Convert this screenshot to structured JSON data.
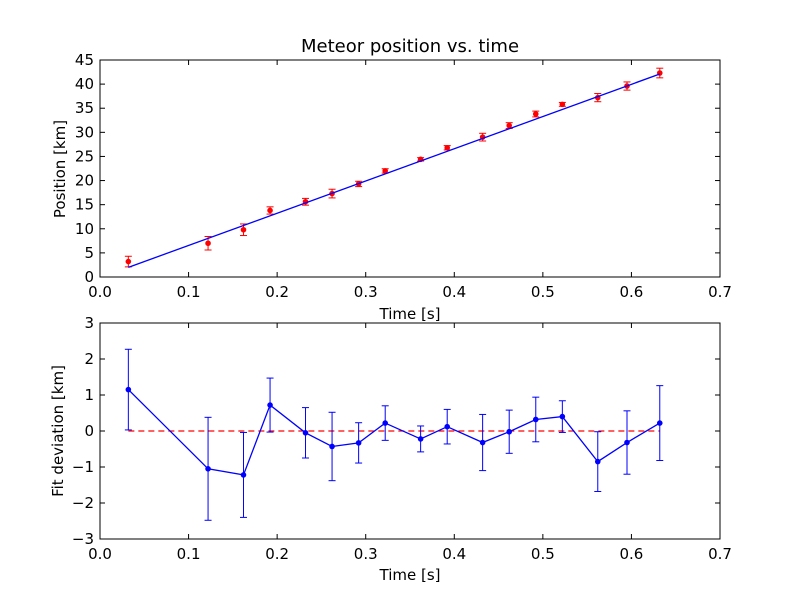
{
  "chart_data": [
    {
      "type": "scatter",
      "title": "Meteor position vs. time",
      "xlabel": "Time [s]",
      "ylabel": "Position [km]",
      "xlim": [
        0.0,
        0.7
      ],
      "ylim": [
        0,
        45
      ],
      "xticks": [
        "0.0",
        "0.1",
        "0.2",
        "0.3",
        "0.4",
        "0.5",
        "0.6",
        "0.7"
      ],
      "yticks": [
        "0",
        "5",
        "10",
        "15",
        "20",
        "25",
        "30",
        "35",
        "40",
        "45"
      ],
      "grid": false,
      "series": [
        {
          "kind": "errorbar-points",
          "color": "#ff0000",
          "x": [
            0.032,
            0.122,
            0.162,
            0.192,
            0.232,
            0.262,
            0.292,
            0.322,
            0.362,
            0.392,
            0.432,
            0.462,
            0.492,
            0.522,
            0.562,
            0.595,
            0.632
          ],
          "y": [
            3.2,
            7.0,
            9.8,
            13.8,
            15.6,
            17.3,
            19.3,
            22.0,
            24.4,
            26.8,
            29.0,
            31.4,
            33.8,
            35.8,
            37.2,
            39.6,
            42.3
          ],
          "yerr": [
            1.1,
            1.4,
            1.2,
            0.75,
            0.7,
            0.9,
            0.55,
            0.45,
            0.35,
            0.45,
            0.8,
            0.6,
            0.6,
            0.4,
            0.85,
            0.85,
            1.0
          ]
        },
        {
          "kind": "fit-line",
          "color": "#0000ff",
          "x": [
            0.032,
            0.632
          ],
          "y": [
            2.0,
            42.1
          ]
        }
      ]
    },
    {
      "type": "line",
      "xlabel": "Time [s]",
      "ylabel": "Fit deviation [km]",
      "xlim": [
        0.0,
        0.7
      ],
      "ylim": [
        -3,
        3
      ],
      "xticks": [
        "0.0",
        "0.1",
        "0.2",
        "0.3",
        "0.4",
        "0.5",
        "0.6",
        "0.7"
      ],
      "yticks": [
        "−3",
        "−2",
        "−1",
        "0",
        "1",
        "2",
        "3"
      ],
      "grid": false,
      "reference_line": {
        "y": 0,
        "style": "dashed",
        "color": "#ff0000"
      },
      "series": [
        {
          "kind": "errorbar-line",
          "color": "#0000ff",
          "x": [
            0.032,
            0.122,
            0.162,
            0.192,
            0.232,
            0.262,
            0.292,
            0.322,
            0.362,
            0.392,
            0.432,
            0.462,
            0.492,
            0.522,
            0.562,
            0.595,
            0.632
          ],
          "y": [
            1.15,
            -1.05,
            -1.22,
            0.72,
            -0.05,
            -0.43,
            -0.33,
            0.22,
            -0.22,
            0.12,
            -0.32,
            -0.02,
            0.32,
            0.4,
            -0.85,
            -0.32,
            0.22
          ],
          "yerr": [
            1.12,
            1.43,
            1.18,
            0.75,
            0.7,
            0.95,
            0.56,
            0.48,
            0.36,
            0.48,
            0.78,
            0.6,
            0.62,
            0.44,
            0.83,
            0.88,
            1.04
          ]
        }
      ]
    }
  ]
}
